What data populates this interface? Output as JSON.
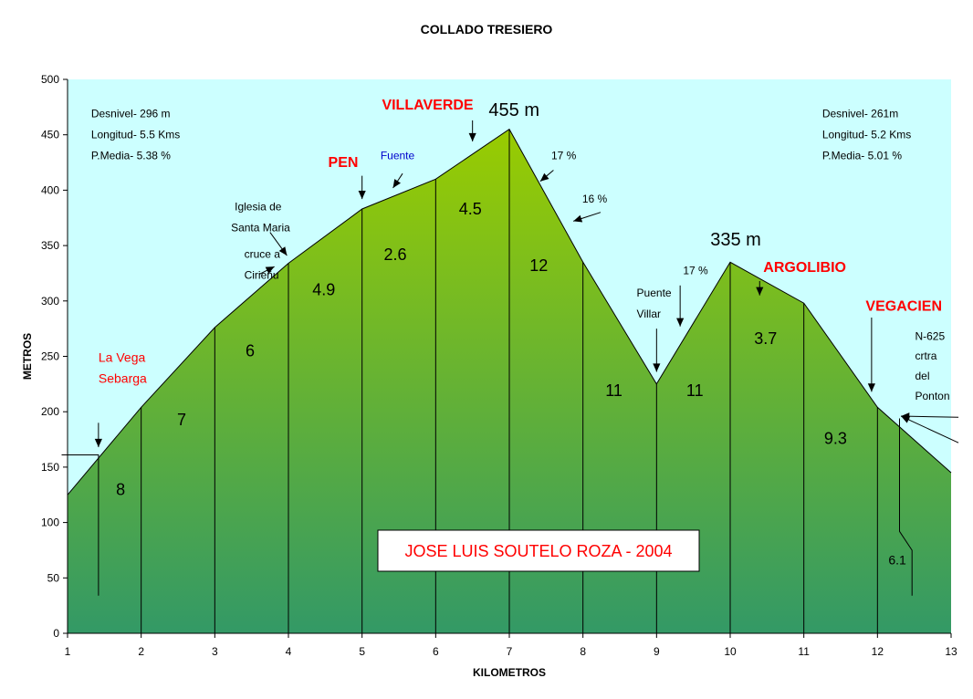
{
  "chart_data": {
    "type": "area",
    "title": "COLLADO TRESIERO",
    "xlabel": "KILOMETROS",
    "ylabel": "METROS",
    "xlim": [
      1,
      13
    ],
    "ylim": [
      0,
      500
    ],
    "x_ticks": [
      "1",
      "2",
      "3",
      "4",
      "5",
      "6",
      "7",
      "8",
      "9",
      "10",
      "11",
      "12",
      "13"
    ],
    "y_ticks": [
      "0",
      "50",
      "100",
      "150",
      "200",
      "250",
      "300",
      "350",
      "400",
      "450",
      "500"
    ],
    "grid": false,
    "profile": {
      "x": [
        1,
        2,
        3,
        4,
        5,
        6,
        7,
        8,
        9,
        10,
        11,
        12,
        13
      ],
      "y": [
        125,
        204,
        276,
        334,
        383,
        410,
        455,
        335,
        225,
        335,
        298,
        204,
        145
      ]
    },
    "segment_grades": [
      {
        "value": "8",
        "x": 1.72,
        "y": 125
      },
      {
        "value": "7",
        "x": 2.55,
        "y": 188
      },
      {
        "value": "6",
        "x": 3.48,
        "y": 250
      },
      {
        "value": "4.9",
        "x": 4.48,
        "y": 305
      },
      {
        "value": "2.6",
        "x": 5.45,
        "y": 337
      },
      {
        "value": "4.5",
        "x": 6.47,
        "y": 378
      },
      {
        "value": "12",
        "x": 7.4,
        "y": 327
      },
      {
        "value": "11",
        "x": 8.42,
        "y": 214
      },
      {
        "value": "11",
        "x": 9.52,
        "y": 214
      },
      {
        "value": "3.7",
        "x": 10.48,
        "y": 261
      },
      {
        "value": "9.3",
        "x": 11.43,
        "y": 171
      },
      {
        "value": "6.1",
        "x": 12.27,
        "y": 62
      }
    ],
    "annotations": [
      {
        "text": "Desnivel- 296 m",
        "x": 1.32,
        "y": 466,
        "color": "#000000",
        "size": "small"
      },
      {
        "text": "Longitud- 5.5 Kms",
        "x": 1.32,
        "y": 447,
        "color": "#000000",
        "size": "small"
      },
      {
        "text": "P.Media- 5.38 %",
        "x": 1.32,
        "y": 428,
        "color": "#000000",
        "size": "small"
      },
      {
        "text": "Desnivel- 261m",
        "x": 11.25,
        "y": 466,
        "color": "#000000",
        "size": "small"
      },
      {
        "text": "Longitud- 5.2 Kms",
        "x": 11.25,
        "y": 447,
        "color": "#000000",
        "size": "small"
      },
      {
        "text": "P.Media- 5.01 %",
        "x": 11.25,
        "y": 428,
        "color": "#000000",
        "size": "small"
      },
      {
        "text": "VILLAVERDE",
        "x": 5.27,
        "y": 473,
        "color": "#ff0000",
        "size": "label"
      },
      {
        "text": "455 m",
        "x": 6.72,
        "y": 467,
        "color": "#000000",
        "size": "big"
      },
      {
        "text": "PEN",
        "x": 4.54,
        "y": 421,
        "color": "#ff0000",
        "size": "label"
      },
      {
        "text": "Fuente",
        "x": 5.25,
        "y": 428,
        "color": "#0000cc",
        "size": "small"
      },
      {
        "text": "17 %",
        "x": 7.57,
        "y": 428,
        "color": "#000000",
        "size": "small"
      },
      {
        "text": "16 %",
        "x": 7.99,
        "y": 389,
        "color": "#000000",
        "size": "small"
      },
      {
        "text": "Iglesia de",
        "x": 3.27,
        "y": 382,
        "color": "#000000",
        "size": "small"
      },
      {
        "text": "Santa Maria",
        "x": 3.22,
        "y": 363,
        "color": "#000000",
        "size": "small"
      },
      {
        "text": "cruce a",
        "x": 3.4,
        "y": 339,
        "color": "#000000",
        "size": "small"
      },
      {
        "text": "Cirieňu",
        "x": 3.4,
        "y": 320,
        "color": "#000000",
        "size": "small"
      },
      {
        "text": "335 m",
        "x": 9.73,
        "y": 350,
        "color": "#000000",
        "size": "big"
      },
      {
        "text": "ARGOLIBIO",
        "x": 10.45,
        "y": 326,
        "color": "#ff0000",
        "size": "label"
      },
      {
        "text": "17 %",
        "x": 9.36,
        "y": 324,
        "color": "#000000",
        "size": "small"
      },
      {
        "text": "Puente",
        "x": 8.73,
        "y": 304,
        "color": "#000000",
        "size": "small"
      },
      {
        "text": "Villar",
        "x": 8.73,
        "y": 285,
        "color": "#000000",
        "size": "small"
      },
      {
        "text": "VEGACIEN",
        "x": 11.84,
        "y": 291,
        "color": "#ff0000",
        "size": "label"
      },
      {
        "text": "N-625",
        "x": 12.51,
        "y": 265,
        "color": "#000000",
        "size": "small"
      },
      {
        "text": "crtra",
        "x": 12.51,
        "y": 247,
        "color": "#000000",
        "size": "small"
      },
      {
        "text": "del",
        "x": 12.51,
        "y": 229,
        "color": "#000000",
        "size": "small"
      },
      {
        "text": "Ponton",
        "x": 12.51,
        "y": 211,
        "color": "#000000",
        "size": "small"
      },
      {
        "text": "La Vega",
        "x": 1.42,
        "y": 245,
        "color": "#ff0000",
        "size": "medium"
      },
      {
        "text": "Sebarga",
        "x": 1.42,
        "y": 226,
        "color": "#ff0000",
        "size": "medium"
      }
    ],
    "arrows": [
      {
        "x1": 1.42,
        "y1": 190,
        "x2": 1.42,
        "y2": 168
      },
      {
        "x1": 3.75,
        "y1": 362,
        "x2": 3.98,
        "y2": 341
      },
      {
        "x1": 3.6,
        "y1": 324,
        "x2": 3.81,
        "y2": 331
      },
      {
        "x1": 5.0,
        "y1": 413,
        "x2": 5.0,
        "y2": 392
      },
      {
        "x1": 5.55,
        "y1": 415,
        "x2": 5.42,
        "y2": 402
      },
      {
        "x1": 6.5,
        "y1": 463,
        "x2": 6.5,
        "y2": 444
      },
      {
        "x1": 7.6,
        "y1": 418,
        "x2": 7.42,
        "y2": 408
      },
      {
        "x1": 8.24,
        "y1": 380,
        "x2": 7.87,
        "y2": 372
      },
      {
        "x1": 9.0,
        "y1": 275,
        "x2": 9.0,
        "y2": 236
      },
      {
        "x1": 9.32,
        "y1": 314,
        "x2": 9.32,
        "y2": 277
      },
      {
        "x1": 10.4,
        "y1": 318,
        "x2": 10.4,
        "y2": 305
      },
      {
        "x1": 11.92,
        "y1": 285,
        "x2": 11.92,
        "y2": 218
      },
      {
        "x1": 13.1,
        "y1": 195,
        "x2": 12.32,
        "y2": 196
      },
      {
        "x1": 13.1,
        "y1": 172,
        "x2": 12.32,
        "y2": 196
      }
    ],
    "marker_lines": [
      {
        "points": [
          [
            0.92,
            161
          ],
          [
            1.42,
            161
          ],
          [
            1.42,
            34
          ]
        ]
      },
      {
        "points": [
          [
            12.3,
            194
          ],
          [
            12.3,
            92
          ],
          [
            12.47,
            75
          ],
          [
            12.47,
            34
          ]
        ]
      }
    ],
    "credit": "JOSE LUIS SOUTELO ROZA - 2004",
    "colors": {
      "sky": "#ccffff",
      "fill_top": "#99cc00",
      "fill_bottom": "#339966",
      "outline": "#000000",
      "highlight_text": "#ff0000",
      "spring_text": "#0000cc"
    }
  }
}
